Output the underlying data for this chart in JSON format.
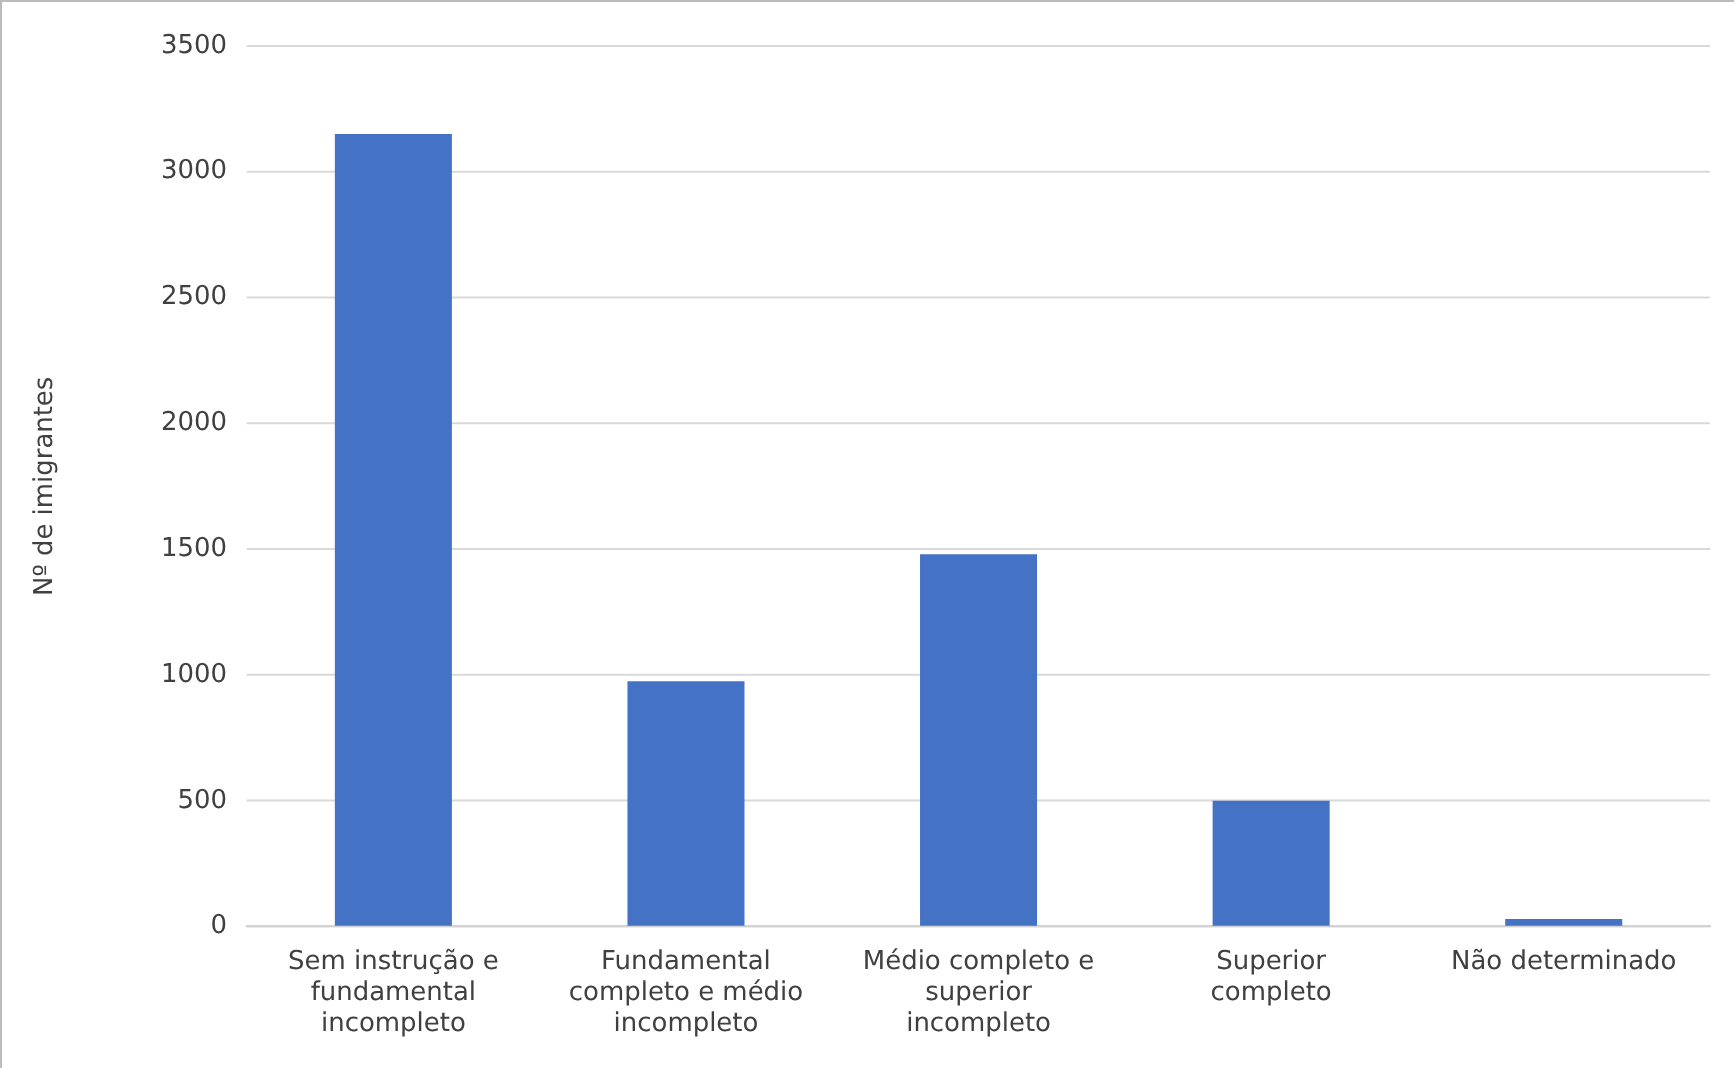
{
  "chart_data": {
    "type": "bar",
    "ylabel": "Nº de imigrantes",
    "categories": [
      "Sem instrução e fundamental incompleto",
      "Fundamental completo e médio incompleto",
      "Médio completo e superior incompleto",
      "Superior completo",
      "Não determinado"
    ],
    "values": [
      3150,
      975,
      1480,
      500,
      30
    ],
    "color": "#4472c4",
    "ylim": [
      0,
      3500
    ],
    "yticks": [
      0,
      500,
      1000,
      1500,
      2000,
      2500,
      3000,
      3500
    ],
    "grid": "y"
  }
}
